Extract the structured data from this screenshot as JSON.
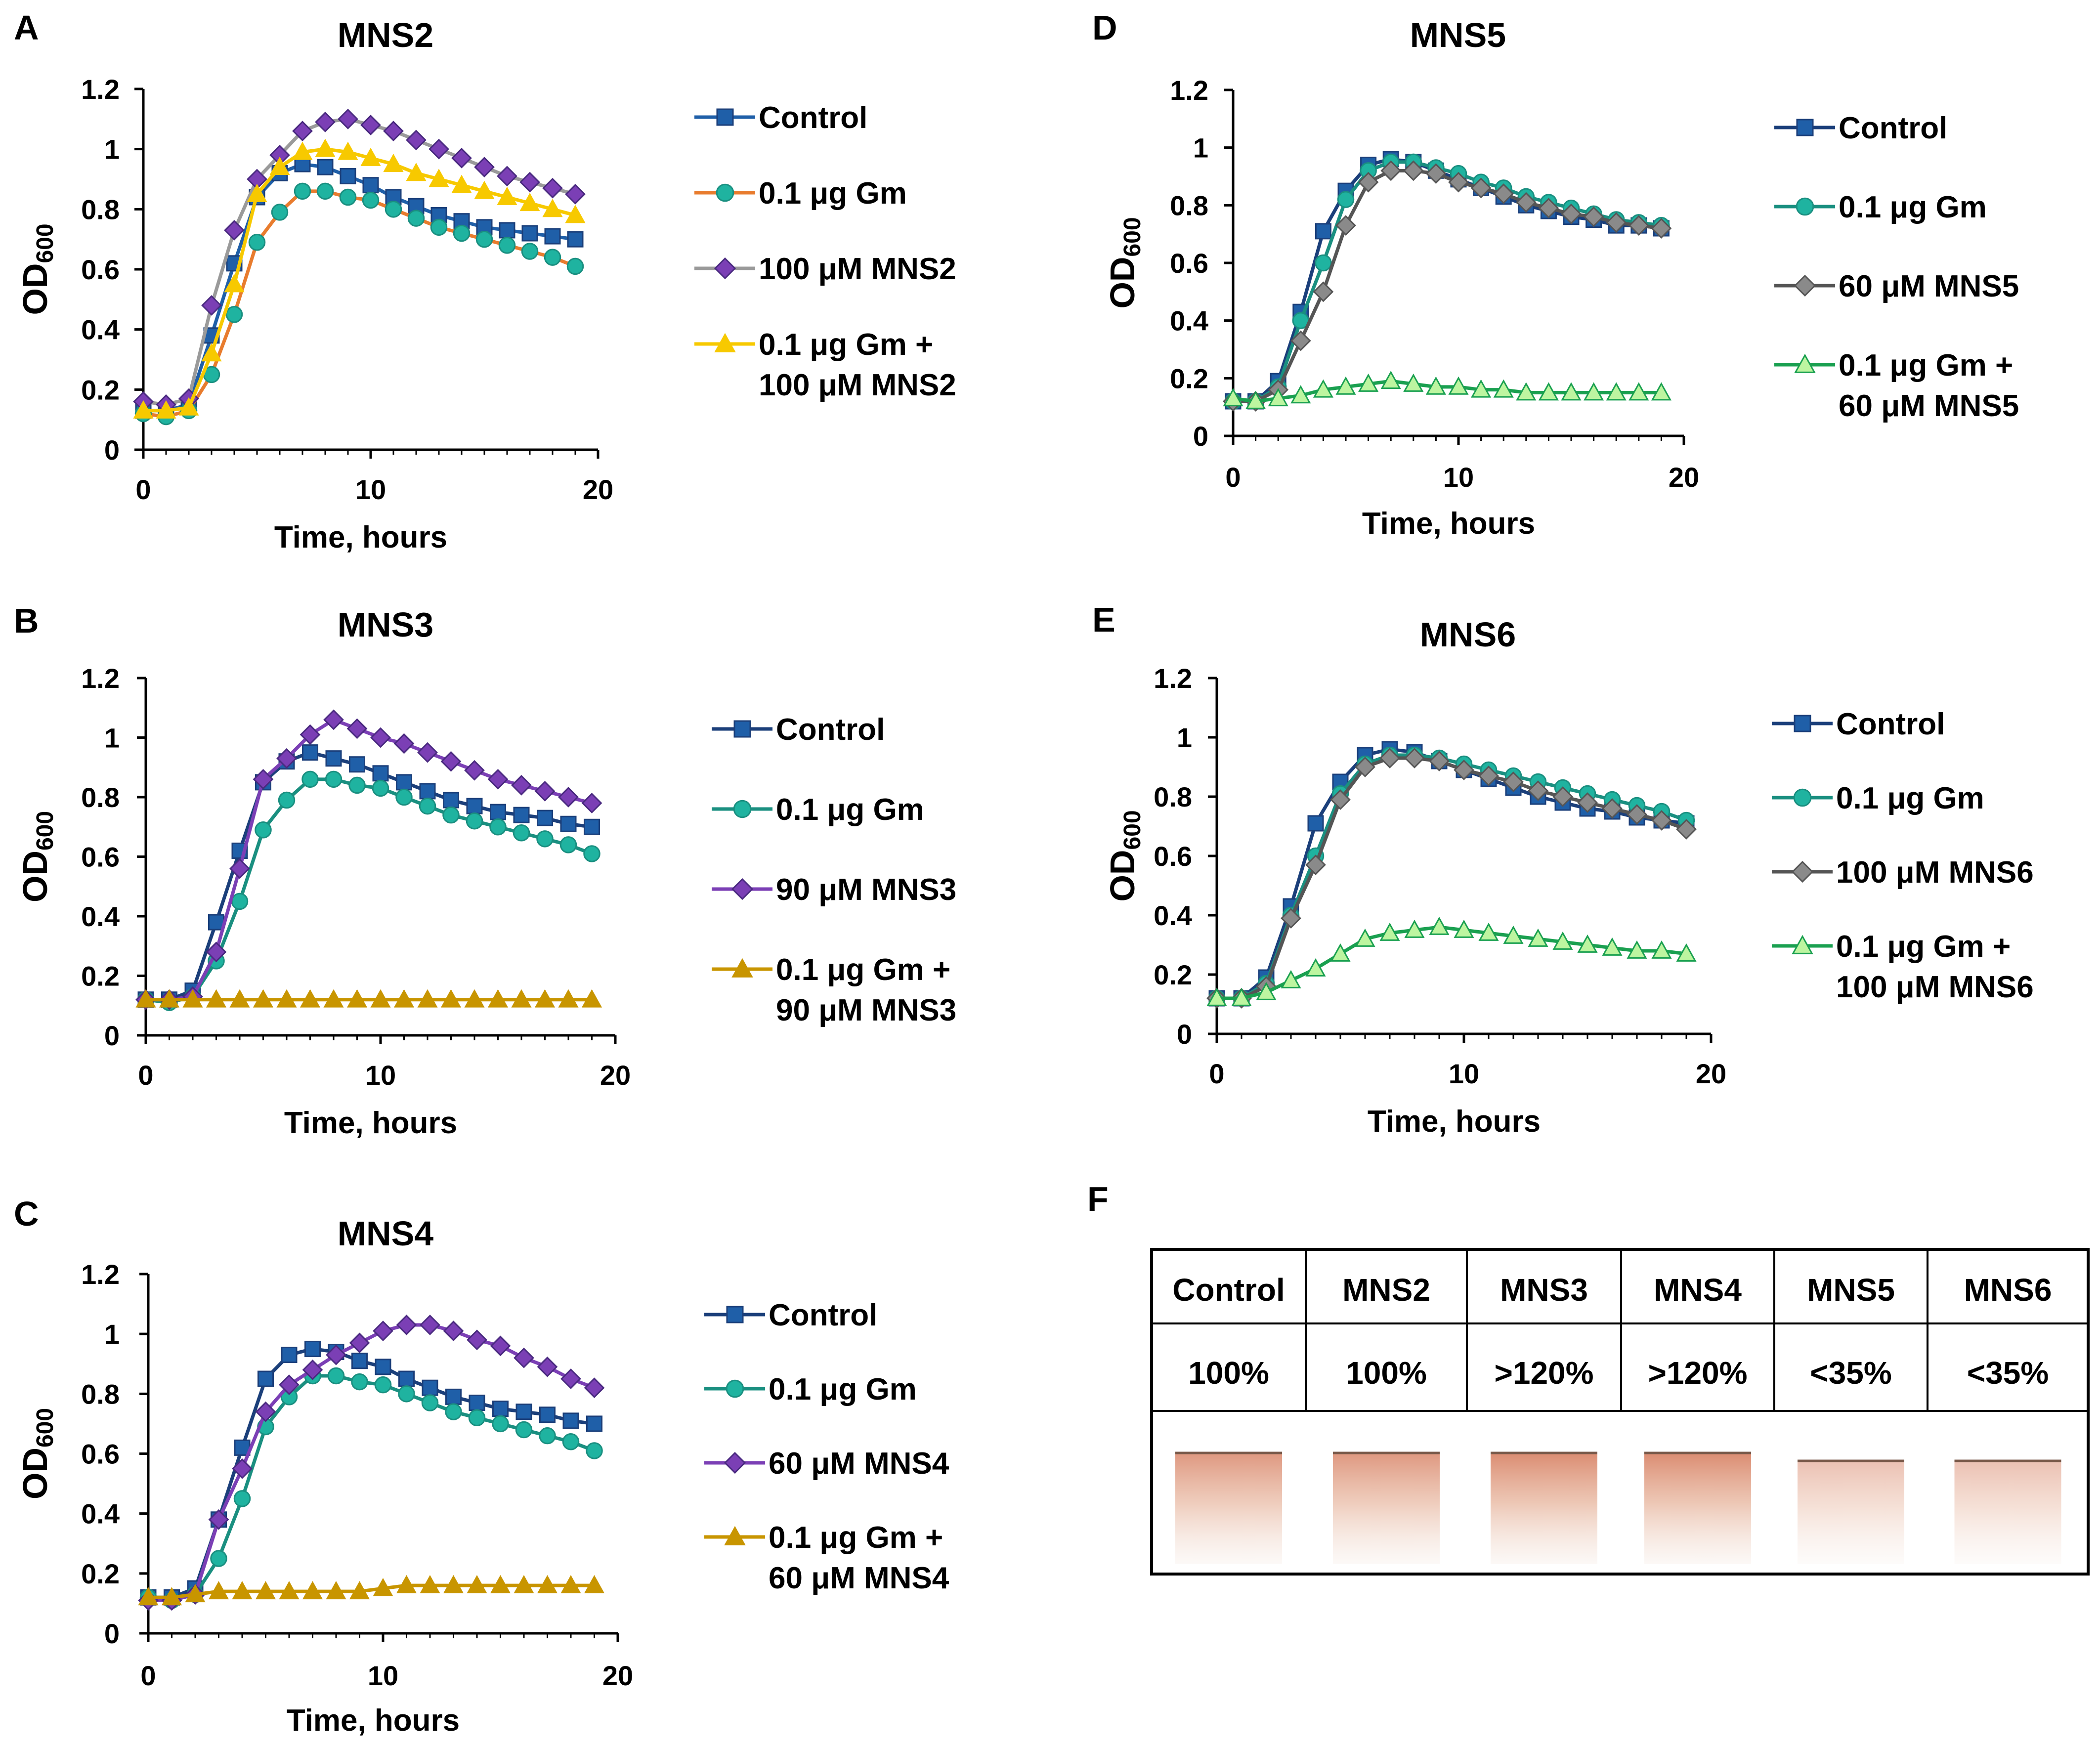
{
  "colors": {
    "control": "#1f5fa8",
    "control_dark": "#1b3f7a",
    "gm": "#1fb3a0",
    "gm_line_A": "#e87c2e",
    "gm_line": "#1a8f80",
    "mns2": "#7b3fb5",
    "mns2_line": "#9a9a9a",
    "purple": "#7b3fb5",
    "combo_yellow": "#f7c900",
    "combo_yellow_fill": "#fff2a8",
    "combo_gold": "#c89500",
    "combo_green": "#1aa050",
    "combo_green_fill": "#bdf5a0",
    "gray_diamond": "#8a8a8a",
    "gray_line": "#555555"
  },
  "chart_data": [
    {
      "panel": "A",
      "type": "line",
      "title": "MNS2",
      "xlabel": "Time, hours",
      "ylabel_main": "OD",
      "ylabel_sub": "600",
      "xlim": [
        0,
        20
      ],
      "ylim": [
        0,
        1.2
      ],
      "xticks": [
        "0",
        "10",
        "20"
      ],
      "yticks": [
        "0",
        "0.2",
        "0.4",
        "0.6",
        "0.8",
        "1",
        "1.2"
      ],
      "x": [
        0,
        1,
        2,
        3,
        4,
        5,
        6,
        7,
        8,
        9,
        10,
        11,
        12,
        13,
        14,
        15,
        16,
        17,
        18,
        19
      ],
      "series": [
        {
          "name": "Control",
          "marker": "square",
          "values": [
            0.13,
            0.13,
            0.15,
            0.38,
            0.62,
            0.84,
            0.92,
            0.95,
            0.94,
            0.91,
            0.88,
            0.84,
            0.81,
            0.78,
            0.76,
            0.74,
            0.73,
            0.72,
            0.71,
            0.7
          ]
        },
        {
          "name": "0.1 μg Gm",
          "marker": "circle",
          "values": [
            0.12,
            0.11,
            0.13,
            0.25,
            0.45,
            0.69,
            0.79,
            0.86,
            0.86,
            0.84,
            0.83,
            0.8,
            0.77,
            0.74,
            0.72,
            0.7,
            0.68,
            0.66,
            0.64,
            0.61
          ]
        },
        {
          "name": "100 μM MNS2",
          "marker": "diamond",
          "values": [
            0.16,
            0.15,
            0.17,
            0.48,
            0.73,
            0.9,
            0.98,
            1.06,
            1.09,
            1.1,
            1.08,
            1.06,
            1.03,
            1.0,
            0.97,
            0.94,
            0.91,
            0.89,
            0.87,
            0.85
          ]
        },
        {
          "name": "0.1 μg Gm + 100 μM MNS2",
          "legend_lines": [
            "0.1 μg Gm +",
            "100 μM MNS2"
          ],
          "marker": "triangle",
          "values": [
            0.13,
            0.13,
            0.14,
            0.32,
            0.55,
            0.85,
            0.94,
            0.99,
            1.0,
            0.99,
            0.97,
            0.95,
            0.92,
            0.9,
            0.88,
            0.86,
            0.84,
            0.82,
            0.8,
            0.78
          ]
        }
      ]
    },
    {
      "panel": "B",
      "type": "line",
      "title": "MNS3",
      "xlabel": "Time, hours",
      "ylabel_main": "OD",
      "ylabel_sub": "600",
      "xlim": [
        0,
        20
      ],
      "ylim": [
        0,
        1.2
      ],
      "xticks": [
        "0",
        "10",
        "20"
      ],
      "yticks": [
        "0",
        "0.2",
        "0.4",
        "0.6",
        "0.8",
        "1",
        "1.2"
      ],
      "x": [
        0,
        1,
        2,
        3,
        4,
        5,
        6,
        7,
        8,
        9,
        10,
        11,
        12,
        13,
        14,
        15,
        16,
        17,
        18,
        19
      ],
      "series": [
        {
          "name": "Control",
          "marker": "square",
          "values": [
            0.12,
            0.12,
            0.15,
            0.38,
            0.62,
            0.85,
            0.92,
            0.95,
            0.93,
            0.91,
            0.88,
            0.85,
            0.82,
            0.79,
            0.77,
            0.75,
            0.74,
            0.73,
            0.71,
            0.7
          ]
        },
        {
          "name": "0.1 μg Gm",
          "marker": "circle",
          "values": [
            0.12,
            0.11,
            0.13,
            0.25,
            0.45,
            0.69,
            0.79,
            0.86,
            0.86,
            0.84,
            0.83,
            0.8,
            0.77,
            0.74,
            0.72,
            0.7,
            0.68,
            0.66,
            0.64,
            0.61
          ]
        },
        {
          "name": "90 μM MNS3",
          "marker": "diamond",
          "values": [
            0.12,
            0.12,
            0.13,
            0.28,
            0.56,
            0.86,
            0.93,
            1.01,
            1.06,
            1.03,
            1.0,
            0.98,
            0.95,
            0.92,
            0.89,
            0.86,
            0.84,
            0.82,
            0.8,
            0.78
          ]
        },
        {
          "name": "0.1 μg Gm + 90 μM MNS3",
          "legend_lines": [
            "0.1 μg Gm +",
            "90 μM MNS3"
          ],
          "marker": "triangle",
          "values": [
            0.12,
            0.12,
            0.12,
            0.12,
            0.12,
            0.12,
            0.12,
            0.12,
            0.12,
            0.12,
            0.12,
            0.12,
            0.12,
            0.12,
            0.12,
            0.12,
            0.12,
            0.12,
            0.12,
            0.12
          ]
        }
      ]
    },
    {
      "panel": "C",
      "type": "line",
      "title": "MNS4",
      "xlabel": "Time, hours",
      "ylabel_main": "OD",
      "ylabel_sub": "600",
      "xlim": [
        0,
        20
      ],
      "ylim": [
        0,
        1.2
      ],
      "xticks": [
        "0",
        "10",
        "20"
      ],
      "yticks": [
        "0",
        "0.2",
        "0.4",
        "0.6",
        "0.8",
        "1",
        "1.2"
      ],
      "x": [
        0,
        1,
        2,
        3,
        4,
        5,
        6,
        7,
        8,
        9,
        10,
        11,
        12,
        13,
        14,
        15,
        16,
        17,
        18,
        19
      ],
      "series": [
        {
          "name": "Control",
          "marker": "square",
          "values": [
            0.12,
            0.12,
            0.15,
            0.38,
            0.62,
            0.85,
            0.93,
            0.95,
            0.94,
            0.91,
            0.89,
            0.85,
            0.82,
            0.79,
            0.77,
            0.75,
            0.74,
            0.73,
            0.71,
            0.7
          ]
        },
        {
          "name": "0.1 μg Gm",
          "marker": "circle",
          "values": [
            0.12,
            0.11,
            0.13,
            0.25,
            0.45,
            0.69,
            0.79,
            0.86,
            0.86,
            0.84,
            0.83,
            0.8,
            0.77,
            0.74,
            0.72,
            0.7,
            0.68,
            0.66,
            0.64,
            0.61
          ]
        },
        {
          "name": "60 μM MNS4",
          "marker": "diamond",
          "values": [
            0.11,
            0.11,
            0.13,
            0.38,
            0.55,
            0.74,
            0.83,
            0.88,
            0.93,
            0.97,
            1.01,
            1.03,
            1.03,
            1.01,
            0.98,
            0.96,
            0.92,
            0.89,
            0.85,
            0.82
          ]
        },
        {
          "name": "0.1 μg Gm + 60 μM MNS4",
          "legend_lines": [
            "0.1 μg Gm +",
            "60 μM MNS4"
          ],
          "marker": "triangle",
          "values": [
            0.12,
            0.12,
            0.13,
            0.14,
            0.14,
            0.14,
            0.14,
            0.14,
            0.14,
            0.14,
            0.15,
            0.16,
            0.16,
            0.16,
            0.16,
            0.16,
            0.16,
            0.16,
            0.16,
            0.16
          ]
        }
      ]
    },
    {
      "panel": "D",
      "type": "line",
      "title": "MNS5",
      "xlabel": "Time, hours",
      "ylabel_main": "OD",
      "ylabel_sub": "600",
      "xlim": [
        0,
        20
      ],
      "ylim": [
        0,
        1.2
      ],
      "xticks": [
        "0",
        "10",
        "20"
      ],
      "yticks": [
        "0",
        "0.2",
        "0.4",
        "0.6",
        "0.8",
        "1",
        "1.2"
      ],
      "x": [
        0,
        1,
        2,
        3,
        4,
        5,
        6,
        7,
        8,
        9,
        10,
        11,
        12,
        13,
        14,
        15,
        16,
        17,
        18,
        19
      ],
      "series": [
        {
          "name": "Control",
          "marker": "square",
          "values": [
            0.12,
            0.12,
            0.19,
            0.43,
            0.71,
            0.85,
            0.94,
            0.96,
            0.95,
            0.92,
            0.89,
            0.86,
            0.83,
            0.8,
            0.78,
            0.76,
            0.75,
            0.73,
            0.73,
            0.72
          ]
        },
        {
          "name": "0.1 μg Gm",
          "marker": "circle",
          "values": [
            0.12,
            0.12,
            0.17,
            0.4,
            0.6,
            0.82,
            0.92,
            0.95,
            0.95,
            0.93,
            0.91,
            0.88,
            0.86,
            0.83,
            0.81,
            0.79,
            0.77,
            0.75,
            0.74,
            0.73
          ]
        },
        {
          "name": "60 μM MNS5",
          "marker": "diamond",
          "values": [
            0.12,
            0.12,
            0.16,
            0.33,
            0.5,
            0.73,
            0.88,
            0.92,
            0.92,
            0.91,
            0.88,
            0.86,
            0.84,
            0.81,
            0.79,
            0.77,
            0.76,
            0.74,
            0.73,
            0.72
          ]
        },
        {
          "name": "0.1 μg Gm + 60 μM MNS5",
          "legend_lines": [
            "0.1 μg Gm +",
            "60 μM MNS5"
          ],
          "marker": "triangle",
          "values": [
            0.13,
            0.12,
            0.13,
            0.14,
            0.16,
            0.17,
            0.18,
            0.19,
            0.18,
            0.17,
            0.17,
            0.16,
            0.16,
            0.15,
            0.15,
            0.15,
            0.15,
            0.15,
            0.15,
            0.15
          ]
        }
      ]
    },
    {
      "panel": "E",
      "type": "line",
      "title": "MNS6",
      "xlabel": "Time, hours",
      "ylabel_main": "OD",
      "ylabel_sub": "600",
      "xlim": [
        0,
        20
      ],
      "ylim": [
        0,
        1.2
      ],
      "xticks": [
        "0",
        "10",
        "20"
      ],
      "yticks": [
        "0",
        "0.2",
        "0.4",
        "0.6",
        "0.8",
        "1",
        "1.2"
      ],
      "x": [
        0,
        1,
        2,
        3,
        4,
        5,
        6,
        7,
        8,
        9,
        10,
        11,
        12,
        13,
        14,
        15,
        16,
        17,
        18,
        19
      ],
      "series": [
        {
          "name": "Control",
          "marker": "square",
          "values": [
            0.12,
            0.12,
            0.19,
            0.43,
            0.71,
            0.85,
            0.94,
            0.96,
            0.95,
            0.92,
            0.89,
            0.86,
            0.83,
            0.8,
            0.78,
            0.76,
            0.75,
            0.73,
            0.72,
            0.71
          ]
        },
        {
          "name": "0.1 μg Gm",
          "marker": "circle",
          "values": [
            0.12,
            0.12,
            0.17,
            0.4,
            0.6,
            0.81,
            0.91,
            0.94,
            0.94,
            0.93,
            0.91,
            0.89,
            0.87,
            0.85,
            0.83,
            0.81,
            0.79,
            0.77,
            0.75,
            0.72
          ]
        },
        {
          "name": "100 μM MNS6",
          "marker": "diamond",
          "values": [
            0.12,
            0.12,
            0.16,
            0.39,
            0.57,
            0.79,
            0.9,
            0.93,
            0.93,
            0.92,
            0.89,
            0.87,
            0.85,
            0.82,
            0.8,
            0.78,
            0.76,
            0.74,
            0.72,
            0.69
          ]
        },
        {
          "name": "0.1 μg Gm + 100 μM MNS6",
          "legend_lines": [
            "0.1 μg Gm +",
            "100 μM MNS6"
          ],
          "marker": "triangle",
          "values": [
            0.12,
            0.12,
            0.14,
            0.18,
            0.22,
            0.27,
            0.32,
            0.34,
            0.35,
            0.36,
            0.35,
            0.34,
            0.33,
            0.32,
            0.31,
            0.3,
            0.29,
            0.28,
            0.28,
            0.27
          ]
        }
      ]
    }
  ],
  "panel_F": {
    "label": "F",
    "headers": [
      "Control",
      "MNS2",
      "MNS3",
      "MNS4",
      "MNS5",
      "MNS6"
    ],
    "values": [
      "100%",
      "100%",
      ">120%",
      ">120%",
      "<35%",
      "<35%"
    ],
    "swatch_intensity": [
      1.0,
      1.0,
      1.2,
      1.2,
      0.35,
      0.35
    ]
  }
}
